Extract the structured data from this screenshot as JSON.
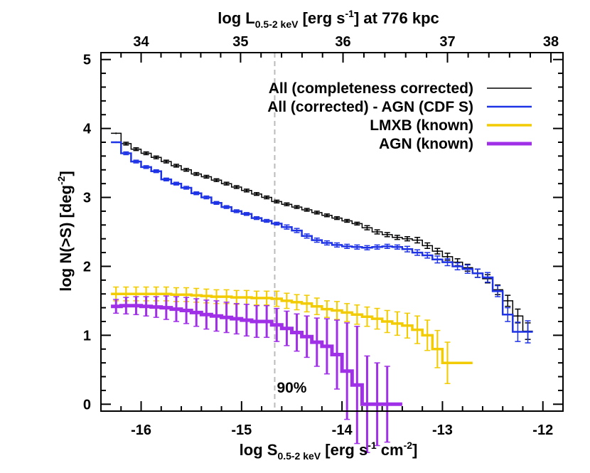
{
  "chart_data": {
    "type": "line",
    "xlabel": {
      "main": "log S",
      "sub": "0.5-2 keV",
      "rest": " [erg s",
      "sup1": "-1",
      "mid": " cm",
      "sup2": "-2",
      "end": "]"
    },
    "ylabel": {
      "main": "log N(>S) [deg",
      "sup": "-2",
      "end": "]"
    },
    "top_axis_label": {
      "main": "log L",
      "sub": "0.5-2 keV",
      "rest": " [erg s",
      "sup": "-1",
      "end": "] at 776 kpc"
    },
    "xlim": [
      -16.4,
      -11.8
    ],
    "ylim": [
      -0.1,
      5.1
    ],
    "x_ticks": [
      -16,
      -15,
      -14,
      -13,
      -12
    ],
    "y_ticks": [
      0,
      1,
      2,
      3,
      4,
      5
    ],
    "top_ticks": [
      34,
      35,
      36,
      37,
      38
    ],
    "top_tick_x_positions": [
      -16.0,
      -15.01,
      -13.99,
      -12.95,
      -11.92
    ],
    "grid": false,
    "legend_placement": "top-right",
    "annotations": [
      {
        "text": "90%",
        "x": -14.67,
        "y": 0.25
      }
    ],
    "vline": {
      "x": -14.67,
      "color": "#bbbbbb",
      "style": "dashed"
    },
    "bin_width": 0.1,
    "series": [
      {
        "name": "All (completeness corrected)",
        "color": "#000000",
        "width": 1.5,
        "x_start": -16.3,
        "values": [
          3.93,
          3.78,
          3.7,
          3.64,
          3.58,
          3.52,
          3.46,
          3.4,
          3.34,
          3.3,
          3.25,
          3.2,
          3.15,
          3.1,
          3.05,
          3.0,
          2.94,
          2.9,
          2.86,
          2.82,
          2.78,
          2.74,
          2.7,
          2.66,
          2.62,
          2.56,
          2.5,
          2.46,
          2.42,
          2.4,
          2.38,
          2.3,
          2.22,
          2.14,
          2.06,
          1.98,
          1.9,
          1.82,
          1.66,
          1.5,
          1.28,
          1.06
        ],
        "err": [
          0,
          0.02,
          0.02,
          0.02,
          0.02,
          0.02,
          0.02,
          0.02,
          0.02,
          0.02,
          0.02,
          0.02,
          0.02,
          0.02,
          0.02,
          0.02,
          0.02,
          0.02,
          0.02,
          0.02,
          0.02,
          0.02,
          0.02,
          0.02,
          0.02,
          0.03,
          0.03,
          0.03,
          0.03,
          0.03,
          0.04,
          0.04,
          0.04,
          0.05,
          0.05,
          0.05,
          0.06,
          0.06,
          0.07,
          0.08,
          0.1,
          0.12
        ]
      },
      {
        "name": "All (corrected) - AGN (CDF S)",
        "color": "#1f33e6",
        "width": 2.5,
        "x_start": -16.3,
        "values": [
          3.8,
          3.64,
          3.52,
          3.44,
          3.38,
          3.26,
          3.2,
          3.14,
          3.06,
          3.0,
          2.92,
          2.86,
          2.8,
          2.76,
          2.7,
          2.66,
          2.62,
          2.57,
          2.52,
          2.44,
          2.38,
          2.34,
          2.31,
          2.29,
          2.28,
          2.27,
          2.28,
          2.29,
          2.28,
          2.25,
          2.2,
          2.16,
          2.1,
          2.06,
          2.0,
          1.96,
          1.9,
          1.84,
          1.64,
          1.3,
          1.05,
          1.05
        ],
        "err": [
          0,
          0.02,
          0.02,
          0.02,
          0.02,
          0.02,
          0.02,
          0.02,
          0.02,
          0.02,
          0.02,
          0.02,
          0.02,
          0.02,
          0.02,
          0.02,
          0.02,
          0.03,
          0.03,
          0.03,
          0.03,
          0.03,
          0.03,
          0.03,
          0.03,
          0.03,
          0.03,
          0.03,
          0.03,
          0.04,
          0.04,
          0.04,
          0.05,
          0.05,
          0.05,
          0.06,
          0.06,
          0.07,
          0.08,
          0.1,
          0.14,
          0.16
        ]
      },
      {
        "name": "LMXB (known)",
        "color": "#f2cc00",
        "width": 3.5,
        "x_start": -16.3,
        "values": [
          1.6,
          1.6,
          1.6,
          1.6,
          1.6,
          1.6,
          1.59,
          1.59,
          1.58,
          1.57,
          1.56,
          1.56,
          1.55,
          1.55,
          1.54,
          1.54,
          1.53,
          1.5,
          1.48,
          1.46,
          1.42,
          1.38,
          1.36,
          1.33,
          1.3,
          1.27,
          1.24,
          1.2,
          1.17,
          1.14,
          1.08,
          1.0,
          0.8,
          0.6,
          0.6,
          0.6
        ],
        "err": [
          0.1,
          0.1,
          0.1,
          0.1,
          0.1,
          0.1,
          0.1,
          0.1,
          0.1,
          0.1,
          0.1,
          0.1,
          0.1,
          0.1,
          0.1,
          0.1,
          0.11,
          0.11,
          0.11,
          0.12,
          0.12,
          0.12,
          0.13,
          0.13,
          0.14,
          0.14,
          0.15,
          0.16,
          0.17,
          0.18,
          0.2,
          0.22,
          0.27,
          0.3,
          0,
          0
        ]
      },
      {
        "name": "AGN (known)",
        "color": "#a030e8",
        "width": 5,
        "x_start": -16.3,
        "values": [
          1.42,
          1.43,
          1.43,
          1.42,
          1.41,
          1.4,
          1.38,
          1.36,
          1.33,
          1.3,
          1.28,
          1.26,
          1.24,
          1.22,
          1.2,
          1.2,
          1.15,
          1.1,
          1.04,
          0.98,
          0.9,
          0.84,
          0.72,
          0.48,
          0.28,
          0.0,
          0.0,
          0.0,
          0.0
        ],
        "err": [
          0.1,
          0.12,
          0.13,
          0.14,
          0.15,
          0.17,
          0.18,
          0.19,
          0.2,
          0.21,
          0.22,
          0.22,
          0.22,
          0.23,
          0.23,
          0.23,
          0.24,
          0.25,
          0.27,
          0.3,
          0.35,
          0.4,
          0.5,
          0.7,
          0.85,
          0.7,
          0.6,
          0.55,
          0
        ]
      }
    ]
  }
}
